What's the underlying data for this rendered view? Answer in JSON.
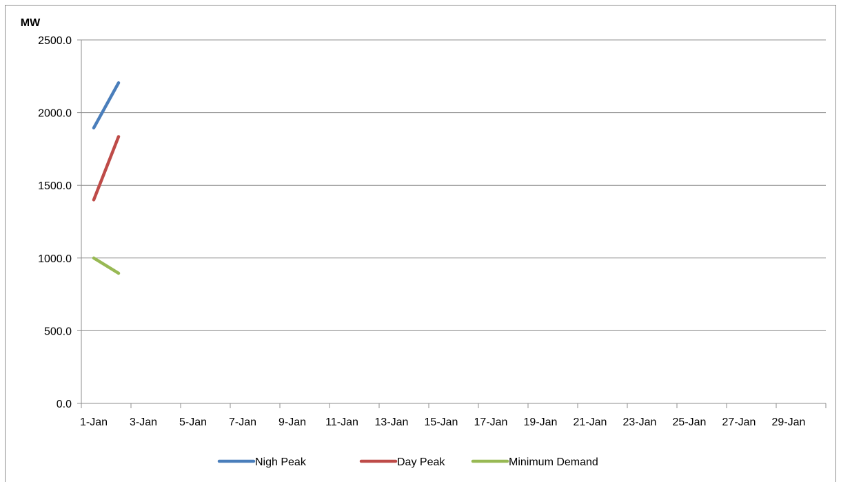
{
  "chart_data": {
    "type": "line",
    "title": "",
    "xlabel": "",
    "ylabel": "MW",
    "ylim": [
      0,
      2500
    ],
    "yticks": [
      "0.0",
      "500.0",
      "1000.0",
      "1500.0",
      "2000.0",
      "2500.0"
    ],
    "x_categories": [
      "1-Jan",
      "2-Jan",
      "3-Jan",
      "4-Jan",
      "5-Jan",
      "6-Jan",
      "7-Jan",
      "8-Jan",
      "9-Jan",
      "10-Jan",
      "11-Jan",
      "12-Jan",
      "13-Jan",
      "14-Jan",
      "15-Jan",
      "16-Jan",
      "17-Jan",
      "18-Jan",
      "19-Jan",
      "20-Jan",
      "21-Jan",
      "22-Jan",
      "23-Jan",
      "24-Jan",
      "25-Jan",
      "26-Jan",
      "27-Jan",
      "28-Jan",
      "29-Jan",
      "30-Jan"
    ],
    "x_tick_labels": [
      "1-Jan",
      "3-Jan",
      "5-Jan",
      "7-Jan",
      "9-Jan",
      "11-Jan",
      "13-Jan",
      "15-Jan",
      "17-Jan",
      "19-Jan",
      "21-Jan",
      "23-Jan",
      "25-Jan",
      "27-Jan",
      "29-Jan"
    ],
    "grid": "horizontal",
    "legend_position": "bottom",
    "series": [
      {
        "name": "Nigh Peak",
        "color": "#4a7ebb",
        "x": [
          "1-Jan",
          "2-Jan"
        ],
        "values": [
          1895,
          2205
        ]
      },
      {
        "name": "Day Peak",
        "color": "#be4b48",
        "x": [
          "1-Jan",
          "2-Jan"
        ],
        "values": [
          1400,
          1835
        ]
      },
      {
        "name": "Minimum Demand",
        "color": "#98b954",
        "x": [
          "1-Jan",
          "2-Jan"
        ],
        "values": [
          1000,
          895
        ]
      }
    ]
  }
}
